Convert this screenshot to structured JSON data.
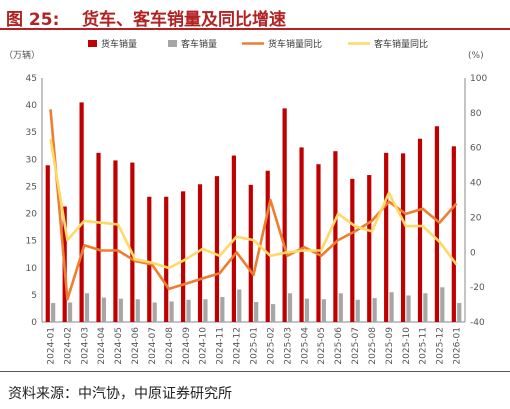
{
  "header": {
    "figure_label": "图 25:",
    "figure_title": "货车、客车销量及同比增速"
  },
  "source": "资料来源：中汽协，中原证券研究所",
  "colors": {
    "truck_bar": "#c00000",
    "bus_bar": "#a6a6a6",
    "truck_line": "#ed7d31",
    "bus_line": "#ffd966",
    "title": "#b22222"
  },
  "chart_data": {
    "type": "bar",
    "left_unit": "（万辆）",
    "right_unit": "(%)",
    "ylim_left": [
      0,
      45
    ],
    "yticks_left": [
      0,
      5,
      10,
      15,
      20,
      25,
      30,
      35,
      40,
      45
    ],
    "ylim_right": [
      -40,
      100
    ],
    "yticks_right": [
      -40,
      -20,
      0,
      20,
      40,
      60,
      80,
      100
    ],
    "legend_position": "top",
    "categories": [
      "2024-01",
      "2024-02",
      "2024-03",
      "2024-04",
      "2024-05",
      "2024-06",
      "2024-07",
      "2024-08",
      "2024-09",
      "2024-10",
      "2024-11",
      "2024-12",
      "2025-01",
      "2025-02",
      "2025-03",
      "2025-04",
      "2025-05",
      "2025-06",
      "2025-07",
      "2025-08",
      "2025-09",
      "2025-10",
      "2025-11",
      "2025-12",
      "2026-01"
    ],
    "bar_series": [
      {
        "name": "货车销量",
        "axis": "left",
        "color": "#c00000",
        "values": [
          28.9,
          21.3,
          40.5,
          31.2,
          29.8,
          29.4,
          23.1,
          23.1,
          24.1,
          25.4,
          26.9,
          30.7,
          25.3,
          27.9,
          39.4,
          32.2,
          29.1,
          31.5,
          26.4,
          27.1,
          31.2,
          31.1,
          33.8,
          36.1,
          32.4
        ]
      },
      {
        "name": "客车销量",
        "axis": "left",
        "color": "#a6a6a6",
        "values": [
          3.5,
          3.6,
          5.3,
          4.5,
          4.3,
          4.2,
          3.6,
          3.8,
          4.1,
          4.2,
          4.6,
          6.0,
          3.7,
          3.3,
          5.3,
          4.3,
          4.2,
          5.3,
          4.1,
          4.4,
          5.5,
          4.9,
          5.3,
          6.4,
          3.5
        ]
      }
    ],
    "line_series": [
      {
        "name": "货车销量同比",
        "axis": "right",
        "color": "#ed7d31",
        "values": [
          82,
          -27,
          4,
          1,
          1,
          -5,
          -7,
          -21,
          -18,
          -15,
          -12,
          0,
          -13,
          30,
          -2,
          3,
          -2,
          7,
          12,
          18,
          29,
          22,
          25,
          17,
          28
        ]
      },
      {
        "name": "客车销量同比",
        "axis": "right",
        "color": "#ffd966",
        "values": [
          65,
          7,
          18,
          17,
          16,
          -4,
          -6,
          -9,
          -4,
          2,
          -2,
          9,
          7,
          -2,
          0,
          1,
          1,
          22,
          15,
          12,
          34,
          15,
          15,
          6,
          -7
        ]
      }
    ]
  }
}
